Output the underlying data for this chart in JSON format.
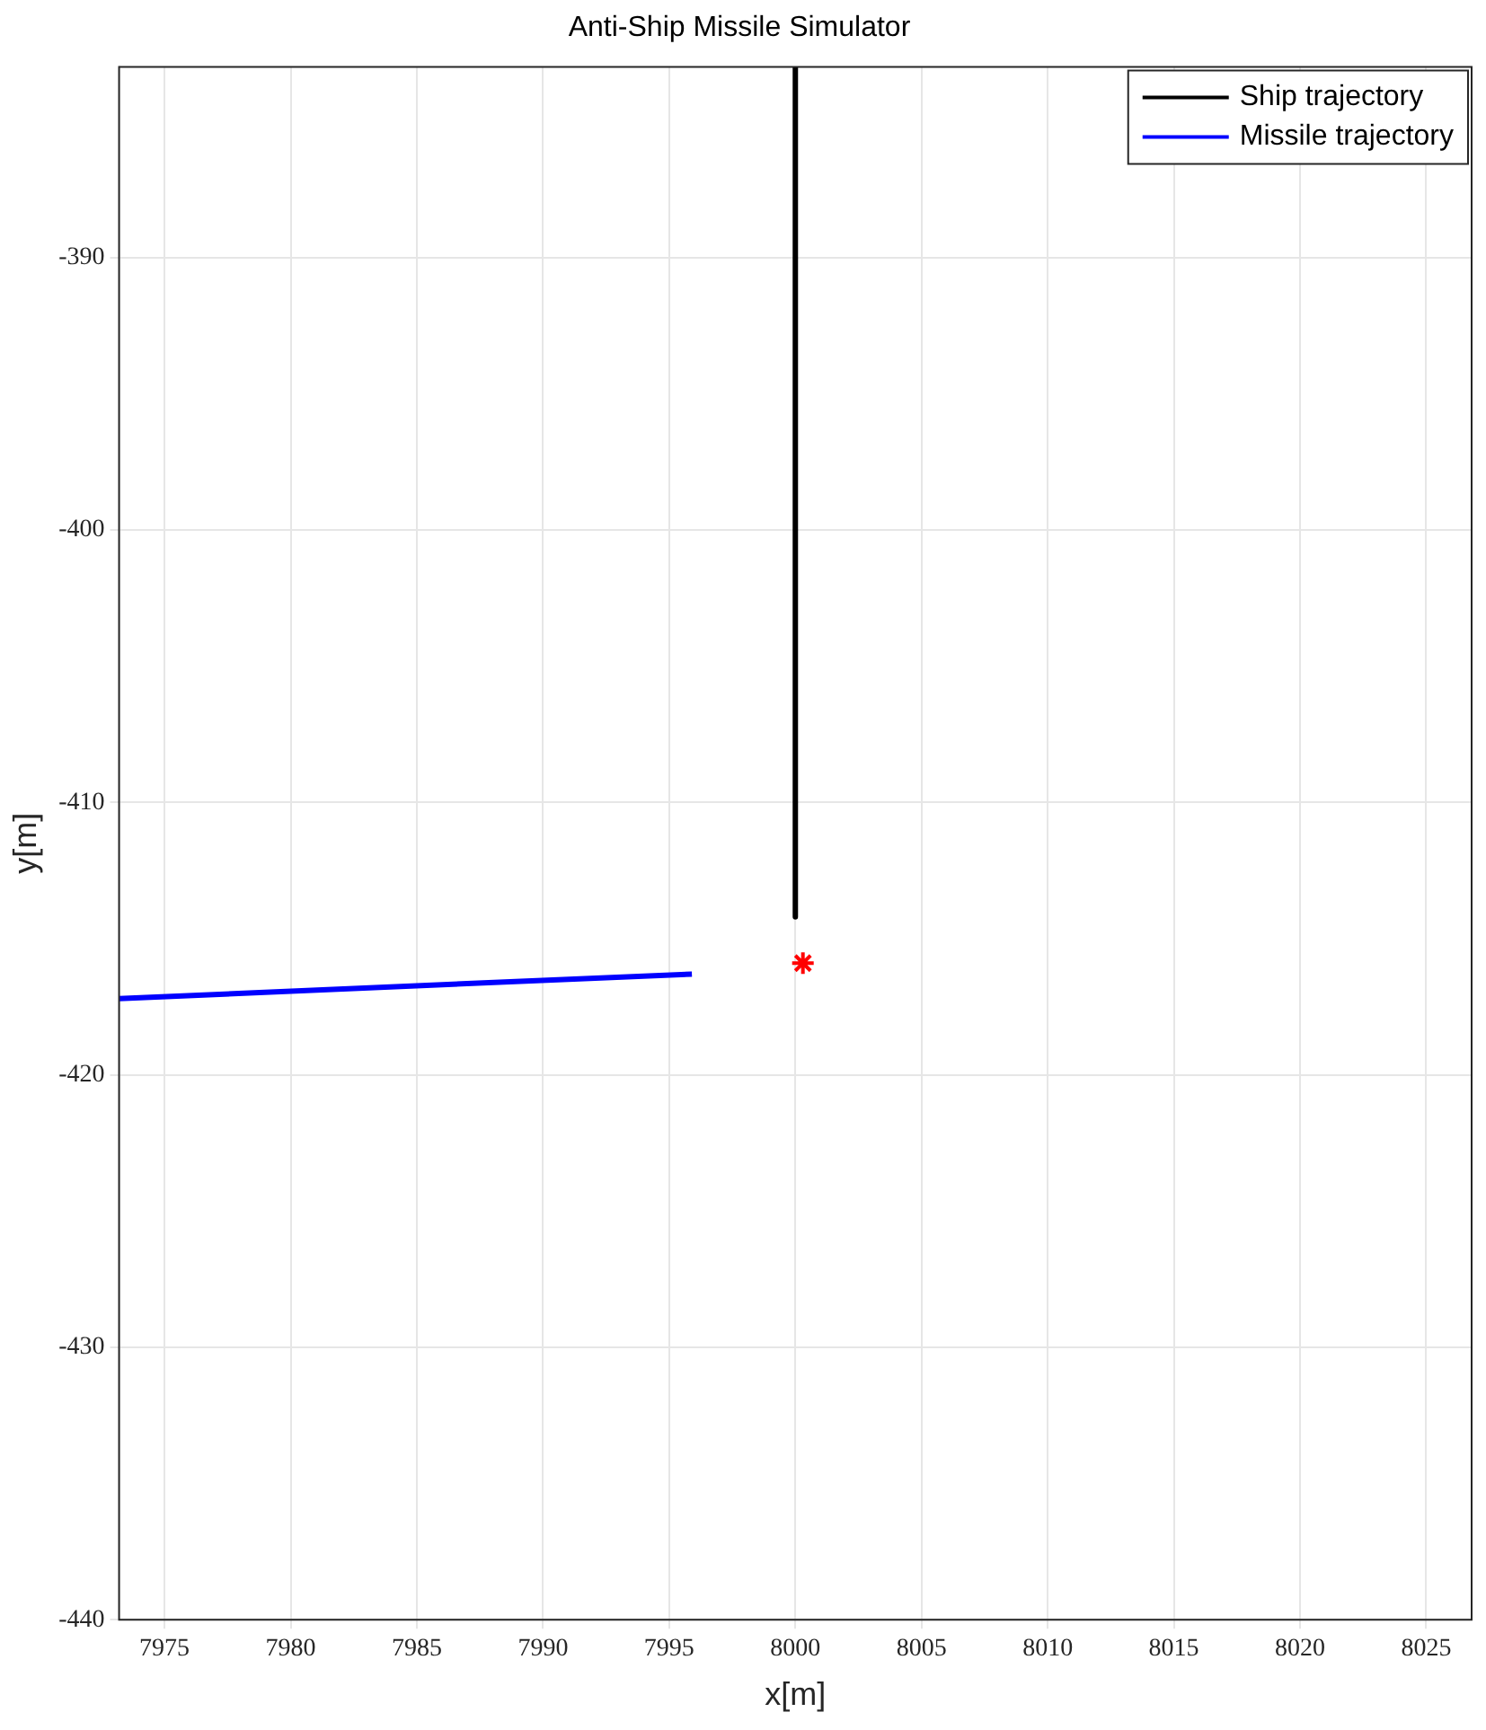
{
  "chart_data": {
    "type": "line",
    "title": "Anti-Ship Missile Simulator",
    "xlabel": "x[m]",
    "ylabel": "y[m]",
    "xlim": [
      7973.2,
      8026.8
    ],
    "ylim": [
      -440,
      -383
    ],
    "xticks": [
      7975,
      7980,
      7985,
      7990,
      7995,
      8000,
      8005,
      8010,
      8015,
      8020,
      8025
    ],
    "yticks": [
      -440,
      -430,
      -420,
      -410,
      -400,
      -390
    ],
    "grid": true,
    "legend": "top right",
    "series": [
      {
        "name": "Ship trajectory",
        "color": "#000000",
        "x": [
          8000,
          8000
        ],
        "values": [
          -383,
          -414.2
        ]
      },
      {
        "name": "Missile trajectory",
        "color": "#0000ff",
        "x": [
          7973.2,
          7995.9
        ],
        "values": [
          -417.2,
          -416.3
        ]
      },
      {
        "type": "scatter",
        "color": "#ff0000",
        "marker": "cross",
        "x": [
          8000.3
        ],
        "values": [
          -415.9
        ]
      }
    ]
  }
}
